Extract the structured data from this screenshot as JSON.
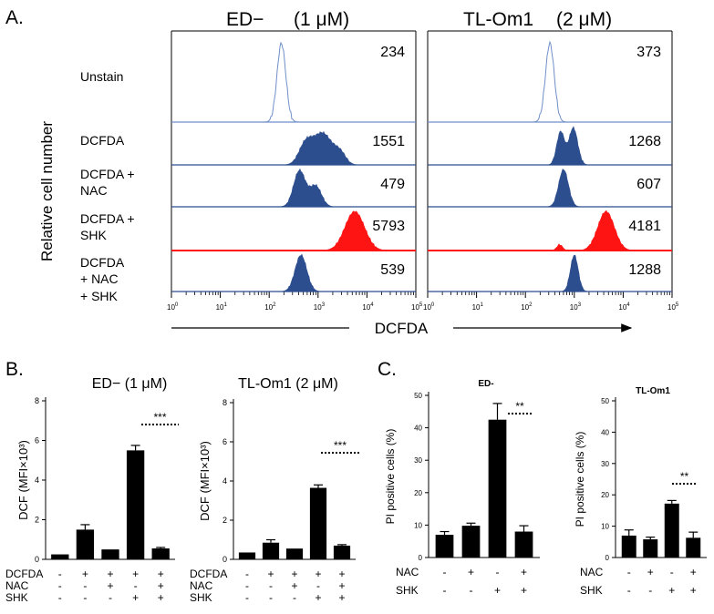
{
  "panel_labels": {
    "a": "A.",
    "b": "B.",
    "c": "C."
  },
  "colors": {
    "blue": "#2c4e8f",
    "red": "#ff1414",
    "outline": "#6f8fc9",
    "bar": "#000000"
  },
  "panelA": {
    "ylabel": "Relative cell number",
    "xlabel": "DCFDA",
    "row_labels": [
      [
        "Unstain"
      ],
      [
        "DCFDA"
      ],
      [
        "DCFDA +",
        "NAC"
      ],
      [
        "DCFDA +",
        "SHK"
      ],
      [
        "DCFDA",
        "+ NAC",
        "+ SHK"
      ]
    ],
    "ed": {
      "title": "ED−",
      "conc": "(1 μM)",
      "mfi": [
        "234",
        "1551",
        "479",
        "5793",
        "539"
      ]
    },
    "tl": {
      "title": "TL-Om1",
      "conc": "(2 μM)",
      "mfi": [
        "373",
        "1268",
        "607",
        "4181",
        "1288"
      ]
    },
    "tick_base": "10",
    "tick_exps": [
      "0",
      "1",
      "2",
      "3",
      "4",
      "5"
    ]
  },
  "chart_data": [
    {
      "id": "B-ED",
      "type": "bar",
      "title": "ED− (1 μM)",
      "ylabel": "DCF (MFI×10³)",
      "ylim": [
        0,
        8
      ],
      "yticks": [
        "0",
        "2",
        "4",
        "6",
        "8"
      ],
      "categories": [
        "1",
        "2",
        "3",
        "4",
        "5"
      ],
      "values": [
        0.25,
        1.5,
        0.5,
        5.5,
        0.55
      ],
      "errors": [
        0,
        0.25,
        0,
        0.25,
        0.05
      ],
      "significance": "***",
      "treatments": [
        {
          "name": "DCFDA",
          "signs": [
            "-",
            "+",
            "+",
            "+",
            "+"
          ]
        },
        {
          "name": "NAC",
          "signs": [
            "-",
            "-",
            "+",
            "-",
            "+"
          ]
        },
        {
          "name": "SHK",
          "signs": [
            "-",
            "-",
            "-",
            "+",
            "+"
          ]
        }
      ]
    },
    {
      "id": "B-TL",
      "type": "bar",
      "title": "TL-Om1 (2 μM)",
      "ylabel": "DCF (MFI×10³)",
      "ylim": [
        0,
        8
      ],
      "yticks": [
        "0",
        "2",
        "4",
        "6",
        "8"
      ],
      "categories": [
        "1",
        "2",
        "3",
        "4",
        "5"
      ],
      "values": [
        0.35,
        0.85,
        0.55,
        3.65,
        0.7
      ],
      "errors": [
        0,
        0.15,
        0,
        0.15,
        0.05
      ],
      "significance": "***",
      "treatments": [
        {
          "name": "DCFDA",
          "signs": [
            "-",
            "+",
            "+",
            "+",
            "+"
          ]
        },
        {
          "name": "NAC",
          "signs": [
            "-",
            "-",
            "+",
            "-",
            "+"
          ]
        },
        {
          "name": "SHK",
          "signs": [
            "-",
            "-",
            "-",
            "+",
            "+"
          ]
        }
      ]
    },
    {
      "id": "C-ED",
      "type": "bar",
      "title": "ED-",
      "ylabel": "PI positive cells (%)",
      "ylim": [
        0,
        50
      ],
      "yticks": [
        "0",
        "10",
        "20",
        "30",
        "40",
        "50"
      ],
      "categories": [
        "1",
        "2",
        "3",
        "4"
      ],
      "values": [
        7,
        9.8,
        42.5,
        8
      ],
      "errors": [
        1,
        0.8,
        5,
        1.8
      ],
      "significance": "**",
      "treatments": [
        {
          "name": "NAC",
          "signs": [
            "-",
            "+",
            "-",
            "+"
          ]
        },
        {
          "name": "SHK",
          "signs": [
            "-",
            "-",
            "+",
            "+"
          ]
        }
      ]
    },
    {
      "id": "C-TL",
      "type": "bar",
      "title": "TL-Om1",
      "ylabel": "PI positive cells (%)",
      "ylim": [
        0,
        50
      ],
      "yticks": [
        "0",
        "10",
        "20",
        "30",
        "40",
        "50"
      ],
      "categories": [
        "1",
        "2",
        "3",
        "4"
      ],
      "values": [
        7,
        5.8,
        17.2,
        6.3
      ],
      "errors": [
        1.8,
        0.7,
        1,
        1.8
      ],
      "significance": "**",
      "treatments": [
        {
          "name": "NAC",
          "signs": [
            "-",
            "+",
            "-",
            "+"
          ]
        },
        {
          "name": "SHK",
          "signs": [
            "-",
            "-",
            "+",
            "+"
          ]
        }
      ]
    }
  ]
}
